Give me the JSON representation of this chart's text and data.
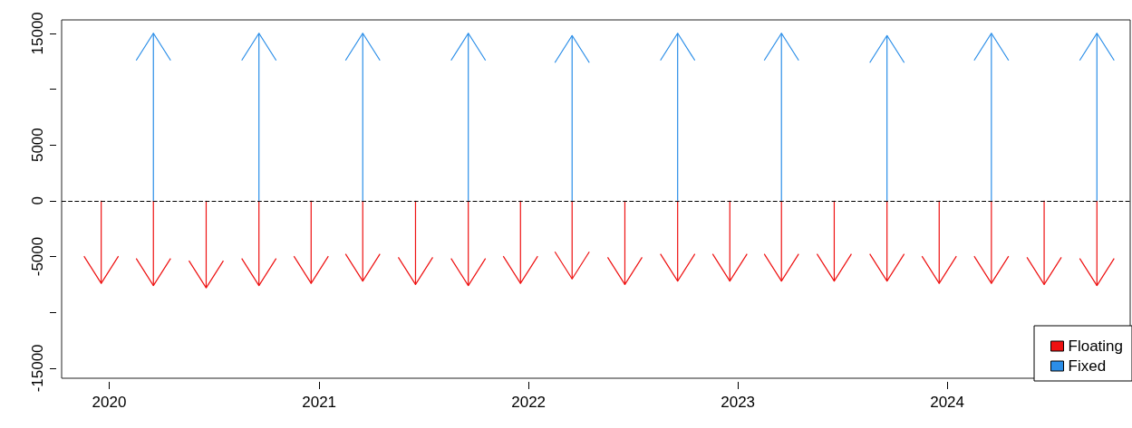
{
  "chart_data": {
    "type": "bar",
    "legend": "bottom right",
    "grid": false,
    "xlim": [
      "2019-10-10",
      "2024-11-15"
    ],
    "xticks": [
      "2020",
      "2021",
      "2022",
      "2023",
      "2024"
    ],
    "ylim": [
      -15900,
      16200
    ],
    "yticks": [
      -15000,
      {
        "value": -10000,
        "label": null
      },
      -5000,
      0,
      5000,
      {
        "value": 10000,
        "label": null
      },
      15000
    ],
    "ref_lines": [
      {
        "axis": "y",
        "value": 0,
        "color": "#000000",
        "line_style": "dashed"
      }
    ],
    "series": [
      {
        "name": "Floating",
        "color": "#ee1111",
        "x": [
          "2019-12-18",
          "2020-03-18",
          "2020-06-18",
          "2020-09-18",
          "2020-12-18",
          "2021-03-18",
          "2021-06-18",
          "2021-09-18",
          "2021-12-18",
          "2022-03-18",
          "2022-06-18",
          "2022-09-18",
          "2022-12-18",
          "2023-03-18",
          "2023-06-18",
          "2023-09-18",
          "2023-12-18",
          "2024-03-18",
          "2024-06-18",
          "2024-09-18"
        ],
        "values": [
          -7400,
          -7600,
          -7800,
          -7600,
          -7400,
          -7200,
          -7500,
          -7600,
          -7400,
          -7000,
          -7500,
          -7200,
          -7200,
          -7200,
          -7200,
          -7200,
          -7400,
          -7400,
          -7500,
          -7600
        ]
      },
      {
        "name": "Fixed",
        "color": "#2b8ee8",
        "x": [
          "2020-03-18",
          "2020-09-18",
          "2021-03-18",
          "2021-09-18",
          "2022-03-18",
          "2022-09-18",
          "2023-03-18",
          "2023-09-18",
          "2024-03-18",
          "2024-09-18"
        ],
        "values": [
          15000,
          15000,
          15000,
          15000,
          14800,
          15000,
          15000,
          14800,
          15000,
          15000
        ]
      }
    ]
  }
}
